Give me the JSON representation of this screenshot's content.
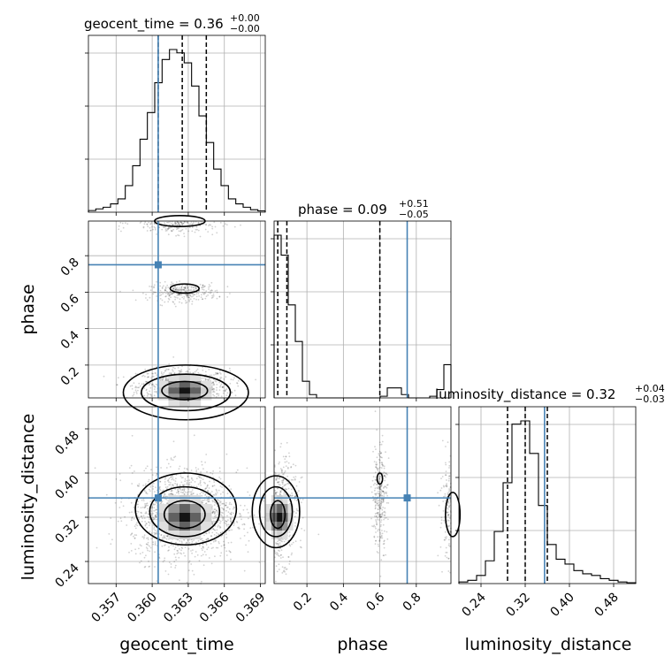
{
  "chart_data": {
    "type": "corner",
    "truth_color": "#4682b4",
    "line_color": "#000000",
    "params": [
      {
        "key": "geocent_time",
        "label": "geocent_time",
        "title": {
          "prefix": "geocent_time = ",
          "value": "0.36",
          "sup": "+0.00",
          "sub": "−0.00"
        },
        "range": [
          0.3547,
          0.3694
        ],
        "ticks": [
          0.357,
          0.36,
          0.363,
          0.366,
          0.369
        ],
        "tick_labels": [
          "0.357",
          "0.360",
          "0.363",
          "0.366",
          "0.369"
        ],
        "quantiles": [
          0.3605,
          0.3625,
          0.3645
        ],
        "truth": 0.3605,
        "hist": [
          0.01,
          0.02,
          0.03,
          0.05,
          0.08,
          0.16,
          0.28,
          0.44,
          0.6,
          0.78,
          0.92,
          0.98,
          0.96,
          0.9,
          0.76,
          0.58,
          0.42,
          0.26,
          0.16,
          0.08,
          0.05,
          0.03,
          0.015,
          0.008
        ]
      },
      {
        "key": "phase",
        "label": "phase",
        "title": {
          "prefix": "phase = ",
          "value": "0.09",
          "sup": "+0.51",
          "sub": "−0.05"
        },
        "range": [
          0.02,
          0.99
        ],
        "ticks": [
          0.2,
          0.4,
          0.6,
          0.8
        ],
        "tick_labels": [
          "0.2",
          "0.4",
          "0.6",
          "0.8"
        ],
        "quantiles": [
          0.04,
          0.09,
          0.6
        ],
        "truth": 0.75,
        "hist": [
          0.98,
          0.86,
          0.56,
          0.34,
          0.1,
          0.02,
          0.0,
          0.0,
          0.0,
          0.0,
          0.0,
          0.0,
          0.0,
          0.0,
          0.0,
          0.01,
          0.06,
          0.06,
          0.02,
          0.0,
          0.0,
          0.0,
          0.01,
          0.05,
          0.2
        ]
      },
      {
        "key": "luminosity_distance",
        "label": "luminosity_distance",
        "title": {
          "prefix": "luminosity_distance = ",
          "value": "0.32",
          "sup": "+0.04",
          "sub": "−0.03"
        },
        "range": [
          0.2,
          0.52
        ],
        "ticks": [
          0.24,
          0.32,
          0.4,
          0.48
        ],
        "tick_labels": [
          "0.24",
          "0.32",
          "0.40",
          "0.48"
        ],
        "y_ticks": [
          0.24,
          0.32,
          0.4,
          0.48
        ],
        "quantiles": [
          0.288,
          0.32,
          0.36
        ],
        "truth": 0.355,
        "hist": [
          0.01,
          0.02,
          0.05,
          0.14,
          0.32,
          0.62,
          0.98,
          1.0,
          0.8,
          0.48,
          0.24,
          0.15,
          0.12,
          0.08,
          0.06,
          0.05,
          0.03,
          0.02,
          0.01,
          0.005
        ]
      }
    ],
    "phase_y_ticks": [
      0.2,
      0.4,
      0.6,
      0.8
    ],
    "phase_y_tick_labels": [
      "0.2",
      "0.4",
      "0.6",
      "0.8"
    ],
    "lum_y_tick_labels": [
      "0.24",
      "0.32",
      "0.40",
      "0.48"
    ],
    "grid": true
  }
}
